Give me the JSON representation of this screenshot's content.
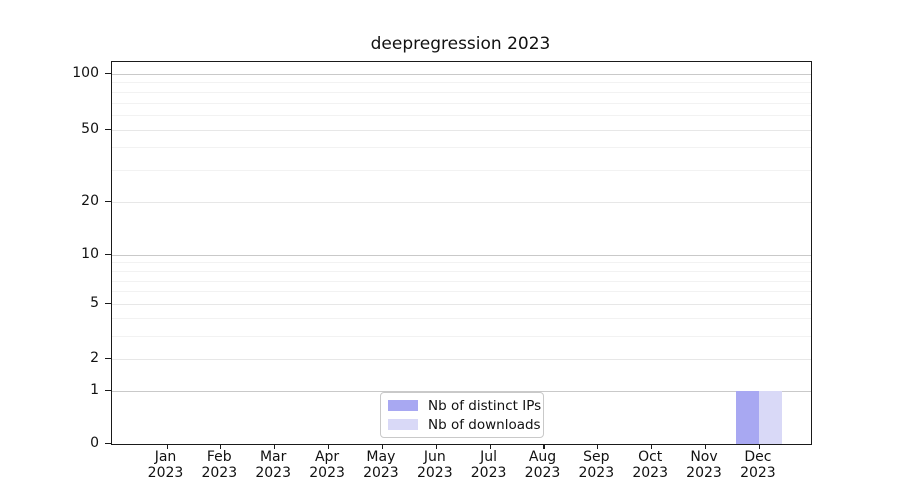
{
  "chart_data": {
    "type": "bar",
    "title": "deepregression 2023",
    "categories": [
      "Jan",
      "Feb",
      "Mar",
      "Apr",
      "May",
      "Jun",
      "Jul",
      "Aug",
      "Sep",
      "Oct",
      "Nov",
      "Dec"
    ],
    "year": "2023",
    "series": [
      {
        "name": "Nb of distinct IPs",
        "color": "#a8a8f2",
        "values": [
          0,
          0,
          0,
          0,
          0,
          0,
          0,
          0,
          0,
          0,
          0,
          1
        ]
      },
      {
        "name": "Nb of downloads",
        "color": "#d9d9f7",
        "values": [
          0,
          0,
          0,
          0,
          0,
          0,
          0,
          0,
          0,
          0,
          0,
          1
        ]
      }
    ],
    "xlabel": "",
    "ylabel": "",
    "y_ticks": [
      0,
      1,
      2,
      5,
      10,
      20,
      50,
      100
    ],
    "decade_ticks": [
      1,
      10,
      100
    ],
    "minor_gridlines": [
      3,
      4,
      6,
      7,
      8,
      9,
      30,
      40,
      60,
      70,
      80,
      90
    ],
    "ylim": [
      0,
      115
    ],
    "y_scale": "log10(value+1.1)",
    "grid": "horizontal, major + faint log minors",
    "legend_position": "inside lower-center",
    "colors": {
      "distinct_ips": "#a8a8f2",
      "downloads": "#d9d9f7",
      "decade_gridline": "#c9c9c9",
      "major_gridline": "#e7e7e7",
      "minor_gridline": "#f2f2f2",
      "spine": "#1a1a1a"
    }
  }
}
